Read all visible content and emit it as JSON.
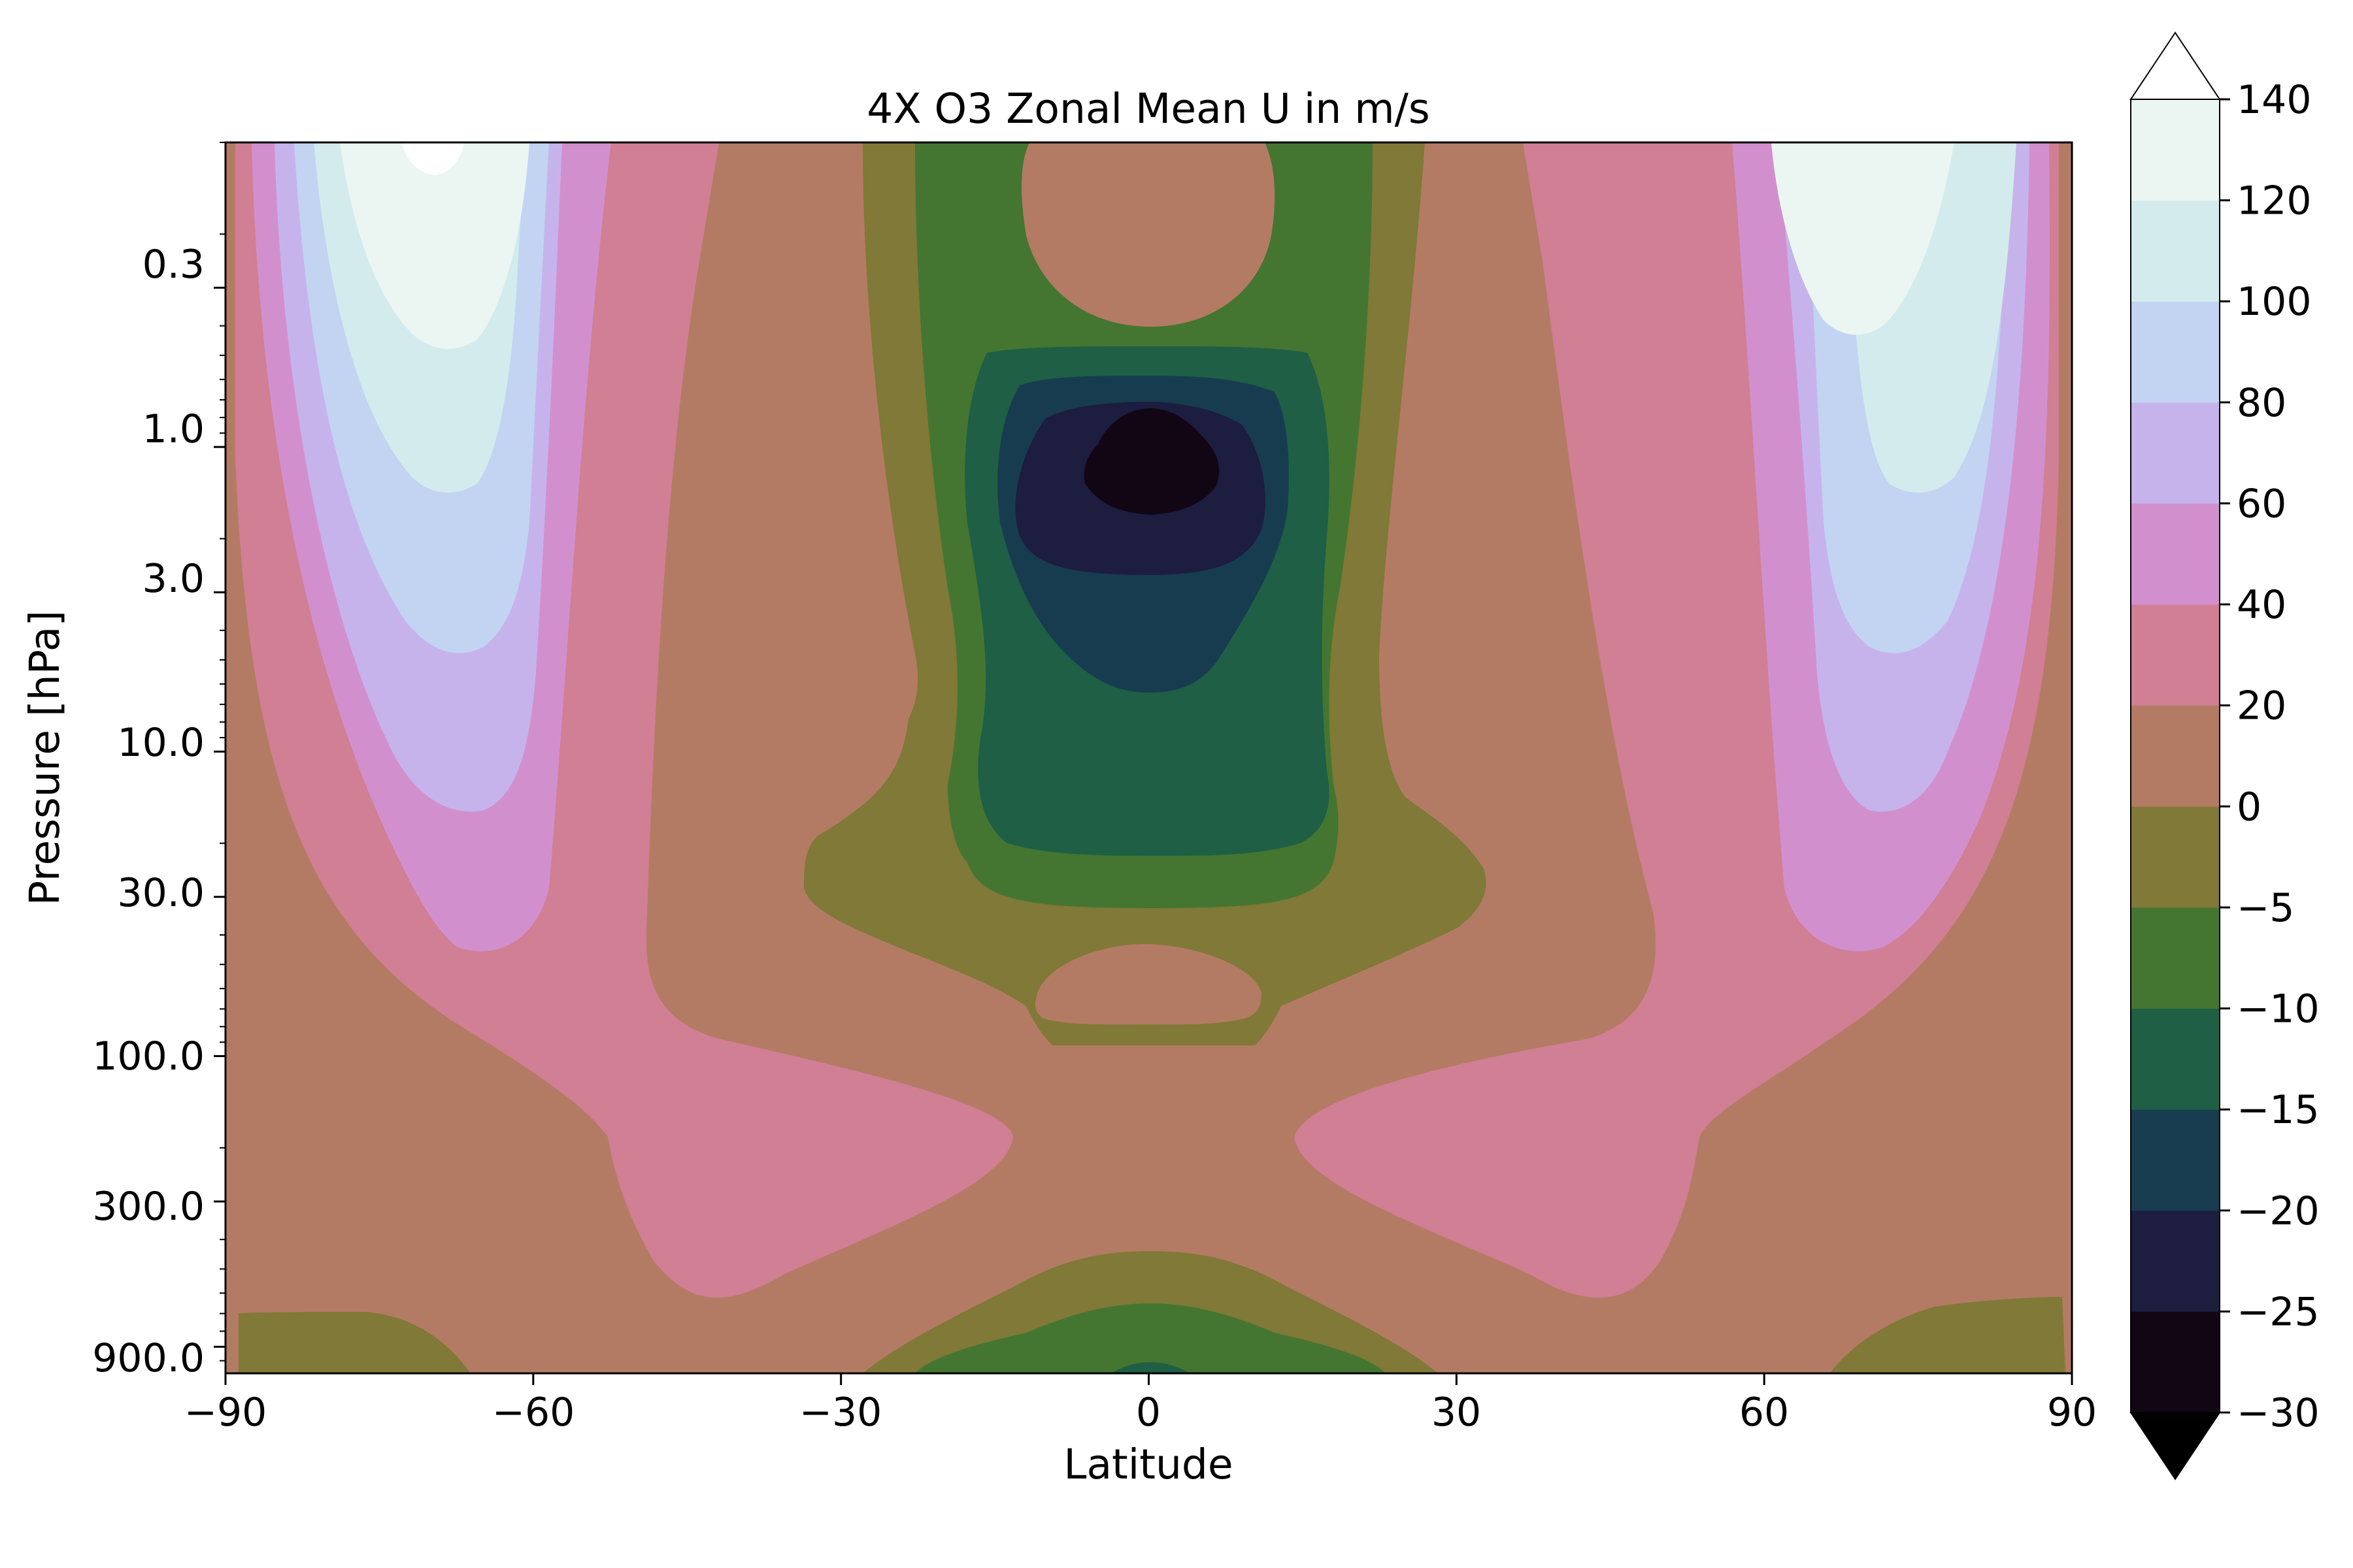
{
  "chart_data": {
    "type": "contourf",
    "title": "4X O3 Zonal Mean U in m/s",
    "xlabel": "Latitude",
    "ylabel": "Pressure [hPa]",
    "xlim": [
      -90,
      90
    ],
    "ylim": [
      1100,
      0.1
    ],
    "yscale": "log",
    "x_ticks": [
      -90,
      -60,
      -30,
      0,
      30,
      60,
      90
    ],
    "x_tick_labels": [
      "−90",
      "−60",
      "−30",
      "0",
      "30",
      "60",
      "90"
    ],
    "y_ticks": [
      0.3,
      1.0,
      3.0,
      10.0,
      30.0,
      100.0,
      300.0,
      900.0
    ],
    "y_tick_labels": [
      "0.3",
      "1.0",
      "3.0",
      "10.0",
      "30.0",
      "100.0",
      "300.0",
      "900.0"
    ],
    "colorbar": {
      "levels": [
        -30,
        -25,
        -20,
        -15,
        -10,
        -5,
        0,
        20,
        40,
        60,
        80,
        100,
        120,
        140
      ],
      "tick_labels": [
        "−30",
        "−25",
        "−20",
        "−15",
        "−10",
        "−5",
        "0",
        "20",
        "40",
        "60",
        "80",
        "100",
        "120",
        "140"
      ],
      "colors": [
        "#120615",
        "#1c1d3f",
        "#173c4f",
        "#1e5f45",
        "#447631",
        "#807937",
        "#b47b64",
        "#d07f94",
        "#d190cd",
        "#c7b3eb",
        "#c2d4f2",
        "#d3ebec",
        "#ebf6f2"
      ],
      "extend": "both",
      "under_color": "#000000",
      "over_color": "#ffffff"
    },
    "features": [
      {
        "kind": "westerly jet core",
        "lat": -68,
        "pressure": 0.1,
        "max_u": 140
      },
      {
        "kind": "westerly jet core",
        "lat": 68,
        "pressure": 0.15,
        "max_u": 130
      },
      {
        "kind": "easterly core",
        "lat": 0,
        "pressure": 1.5,
        "min_u": -30
      },
      {
        "kind": "subtropical jet",
        "lat": -40,
        "pressure": 200,
        "max_u": 30
      },
      {
        "kind": "subtropical jet",
        "lat": 40,
        "pressure": 200,
        "max_u": 30
      },
      {
        "kind": "surface easterlies",
        "lat": 0,
        "pressure": 1000,
        "min_u": -10
      }
    ]
  }
}
